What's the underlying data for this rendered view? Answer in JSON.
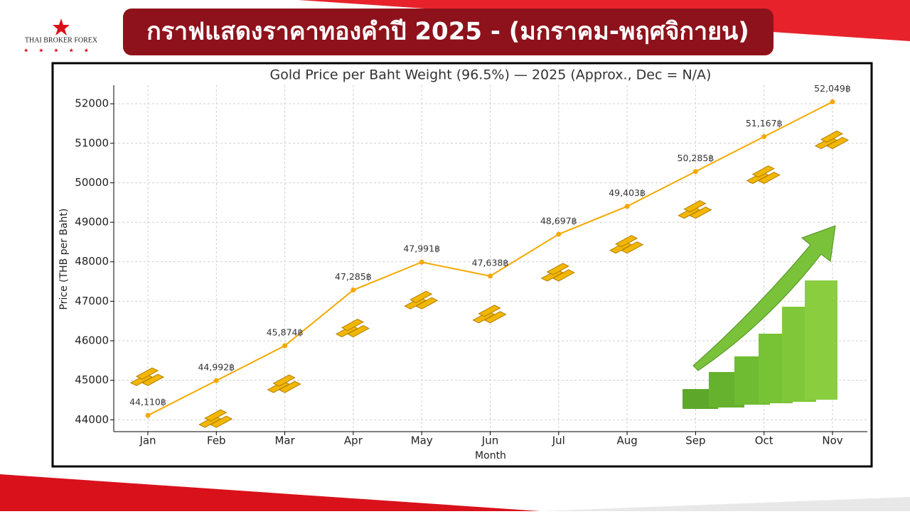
{
  "header": {
    "logo": "THAI BROKER FOREX",
    "title": "กราฟแสดงราคาทองคำปี 2025 - (มกราคม-พฤศจิกายน)"
  },
  "chart_data": {
    "type": "line",
    "title": "Gold Price per Baht Weight (96.5%) — 2025 (Approx., Dec = N/A)",
    "x_label": "Month",
    "y_label": "Price (THB per Baht)",
    "categories": [
      "Jan",
      "Feb",
      "Mar",
      "Apr",
      "May",
      "Jun",
      "Jul",
      "Aug",
      "Sep",
      "Oct",
      "Nov"
    ],
    "values": [
      44110,
      44992,
      45874,
      47285,
      47991,
      47638,
      48697,
      49403,
      50285,
      51167,
      52049
    ],
    "value_labels": [
      "44,110฿",
      "44,992฿",
      "45,874฿",
      "47,285฿",
      "47,991฿",
      "47,638฿",
      "48,697฿",
      "49,403฿",
      "50,285฿",
      "51,167฿",
      "52,049฿"
    ],
    "color": "#f5a800",
    "ylim": [
      43700,
      52470
    ],
    "yticks": [
      44000,
      45000,
      46000,
      47000,
      48000,
      49000,
      50000,
      51000,
      52000
    ],
    "grid": true
  }
}
